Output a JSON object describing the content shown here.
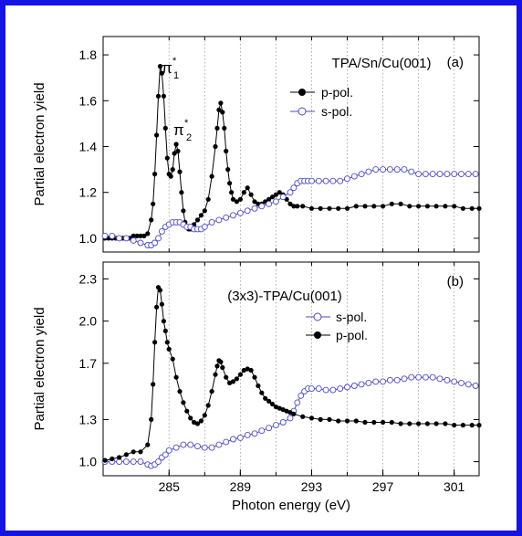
{
  "chart_data": [
    {
      "type": "line",
      "panel_label": "(a)",
      "title": "TPA/Sn/Cu(001)",
      "xlabel": "",
      "ylabel": "Partial electron yield",
      "xlim": [
        281.3,
        302.4
      ],
      "ylim": [
        0.94,
        1.88
      ],
      "yticks": [
        1.0,
        1.2,
        1.4,
        1.6,
        1.8
      ],
      "ytick_labels": [
        "1.0",
        "1.2",
        "1.4",
        "1.6",
        "1.8"
      ],
      "xgrid": [
        285,
        287,
        289,
        291,
        293,
        295,
        297,
        299,
        301
      ],
      "annotations": [
        {
          "text": "π",
          "sub": "1",
          "sup": "*",
          "x": 285.0,
          "y": 1.76
        },
        {
          "text": "π",
          "sub": "2",
          "sup": "*",
          "x": 286.2,
          "y": 1.46
        }
      ],
      "legend_position": "right",
      "series": [
        {
          "name": "p-pol.",
          "color": "#000000",
          "marker": "filled-circle",
          "x": [
            281.4,
            281.6,
            281.8,
            282.0,
            282.2,
            282.4,
            282.6,
            282.8,
            283.0,
            283.2,
            283.4,
            283.6,
            283.8,
            284.0,
            284.1,
            284.2,
            284.3,
            284.4,
            284.5,
            284.6,
            284.7,
            284.8,
            284.9,
            285.0,
            285.1,
            285.2,
            285.3,
            285.4,
            285.5,
            285.6,
            285.7,
            285.8,
            285.9,
            286.0,
            286.1,
            286.2,
            286.3,
            286.4,
            286.6,
            286.8,
            287.0,
            287.2,
            287.4,
            287.6,
            287.7,
            287.8,
            287.9,
            288.0,
            288.1,
            288.2,
            288.3,
            288.4,
            288.5,
            288.6,
            288.8,
            289.0,
            289.2,
            289.4,
            289.6,
            289.8,
            290.0,
            290.2,
            290.4,
            290.6,
            290.8,
            291.0,
            291.2,
            291.4,
            291.6,
            291.8,
            292.0,
            292.2,
            292.5,
            293.0,
            293.5,
            294.0,
            294.5,
            295.0,
            295.5,
            296.0,
            296.5,
            297.0,
            297.5,
            298.0,
            298.5,
            299.0,
            299.5,
            300.0,
            300.5,
            301.0,
            301.5,
            302.0,
            302.4
          ],
          "y": [
            1.0,
            1.0,
            1.0,
            1.0,
            1.0,
            1.0,
            1.0,
            1.0,
            1.01,
            1.01,
            1.01,
            1.01,
            1.02,
            1.08,
            1.15,
            1.28,
            1.45,
            1.62,
            1.75,
            1.72,
            1.62,
            1.48,
            1.35,
            1.28,
            1.27,
            1.3,
            1.37,
            1.41,
            1.38,
            1.29,
            1.2,
            1.12,
            1.07,
            1.05,
            1.04,
            1.04,
            1.05,
            1.06,
            1.08,
            1.1,
            1.12,
            1.17,
            1.27,
            1.4,
            1.48,
            1.56,
            1.59,
            1.55,
            1.48,
            1.38,
            1.3,
            1.24,
            1.2,
            1.17,
            1.16,
            1.17,
            1.2,
            1.22,
            1.19,
            1.16,
            1.15,
            1.15,
            1.16,
            1.17,
            1.18,
            1.19,
            1.2,
            1.19,
            1.17,
            1.15,
            1.14,
            1.14,
            1.14,
            1.13,
            1.13,
            1.13,
            1.13,
            1.13,
            1.14,
            1.14,
            1.14,
            1.14,
            1.15,
            1.15,
            1.14,
            1.14,
            1.14,
            1.14,
            1.14,
            1.14,
            1.13,
            1.13,
            1.13
          ]
        },
        {
          "name": "s-pol.",
          "color": "#4a4ad0",
          "marker": "open-circle",
          "x": [
            281.4,
            281.8,
            282.2,
            282.6,
            283.0,
            283.4,
            283.8,
            284.0,
            284.2,
            284.4,
            284.6,
            284.8,
            285.0,
            285.2,
            285.4,
            285.6,
            285.8,
            286.0,
            286.2,
            286.4,
            286.6,
            286.8,
            287.0,
            287.4,
            287.8,
            288.2,
            288.6,
            289.0,
            289.4,
            289.8,
            290.2,
            290.6,
            291.0,
            291.4,
            291.8,
            292.0,
            292.2,
            292.4,
            292.6,
            292.8,
            293.0,
            293.4,
            293.8,
            294.2,
            294.6,
            295.0,
            295.4,
            295.8,
            296.2,
            296.6,
            297.0,
            297.4,
            297.8,
            298.2,
            298.6,
            299.0,
            299.4,
            299.8,
            300.2,
            300.6,
            301.0,
            301.4,
            301.8,
            302.2
          ],
          "y": [
            1.01,
            1.01,
            1.0,
            1.0,
            0.99,
            0.98,
            0.97,
            0.97,
            0.98,
            1.0,
            1.03,
            1.05,
            1.06,
            1.07,
            1.07,
            1.07,
            1.06,
            1.05,
            1.05,
            1.04,
            1.04,
            1.04,
            1.05,
            1.07,
            1.08,
            1.09,
            1.1,
            1.11,
            1.12,
            1.13,
            1.14,
            1.15,
            1.16,
            1.18,
            1.2,
            1.22,
            1.24,
            1.25,
            1.25,
            1.25,
            1.25,
            1.25,
            1.25,
            1.25,
            1.25,
            1.26,
            1.27,
            1.28,
            1.29,
            1.3,
            1.3,
            1.3,
            1.3,
            1.3,
            1.29,
            1.28,
            1.28,
            1.28,
            1.28,
            1.28,
            1.28,
            1.28,
            1.28,
            1.28
          ]
        }
      ]
    },
    {
      "type": "line",
      "panel_label": "(b)",
      "title": "(3x3)-TPA/Cu(001)",
      "xlabel": "Photon energy (eV)",
      "ylabel": "Partial electron yield",
      "xlim": [
        281.3,
        302.4
      ],
      "ylim": [
        0.9,
        2.42
      ],
      "yticks": [
        1.0,
        1.3,
        1.7,
        2.0,
        2.3
      ],
      "ytick_labels": [
        "1.0",
        "1.3",
        "1.7",
        "2.0",
        "2.3"
      ],
      "xticks": [
        285,
        289,
        293,
        297,
        301
      ],
      "xtick_labels": [
        "285",
        "289",
        "293",
        "297",
        "301"
      ],
      "xgrid": [
        285,
        287,
        289,
        291,
        293,
        295,
        297,
        299,
        301
      ],
      "legend_position": "right",
      "series": [
        {
          "name": "s-pol.",
          "color": "#4a4ad0",
          "marker": "open-circle",
          "x": [
            281.4,
            281.8,
            282.2,
            282.6,
            283.0,
            283.4,
            283.8,
            284.0,
            284.2,
            284.4,
            284.6,
            284.8,
            285.0,
            285.4,
            285.8,
            286.2,
            286.6,
            287.0,
            287.4,
            287.8,
            288.2,
            288.6,
            289.0,
            289.4,
            289.8,
            290.2,
            290.6,
            291.0,
            291.4,
            291.8,
            292.0,
            292.2,
            292.4,
            292.6,
            292.8,
            293.0,
            293.4,
            293.8,
            294.2,
            294.6,
            295.0,
            295.4,
            295.8,
            296.2,
            296.6,
            297.0,
            297.4,
            297.8,
            298.2,
            298.6,
            299.0,
            299.4,
            299.8,
            300.2,
            300.6,
            301.0,
            301.4,
            301.8,
            302.2
          ],
          "y": [
            1.0,
            1.0,
            1.0,
            1.0,
            1.0,
            1.0,
            0.98,
            0.97,
            0.98,
            1.0,
            1.03,
            1.05,
            1.08,
            1.1,
            1.12,
            1.12,
            1.11,
            1.1,
            1.1,
            1.12,
            1.14,
            1.16,
            1.17,
            1.19,
            1.2,
            1.22,
            1.24,
            1.26,
            1.28,
            1.31,
            1.36,
            1.42,
            1.47,
            1.5,
            1.52,
            1.52,
            1.52,
            1.51,
            1.51,
            1.52,
            1.53,
            1.54,
            1.55,
            1.56,
            1.57,
            1.57,
            1.58,
            1.58,
            1.59,
            1.6,
            1.6,
            1.6,
            1.6,
            1.59,
            1.58,
            1.57,
            1.56,
            1.55,
            1.54
          ]
        },
        {
          "name": "p-pol.",
          "color": "#000000",
          "marker": "filled-circle",
          "x": [
            281.4,
            281.8,
            282.2,
            282.6,
            283.0,
            283.4,
            283.8,
            284.0,
            284.1,
            284.2,
            284.3,
            284.4,
            284.5,
            284.6,
            284.7,
            284.8,
            284.9,
            285.0,
            285.2,
            285.4,
            285.6,
            285.8,
            286.0,
            286.2,
            286.4,
            286.6,
            286.8,
            287.0,
            287.2,
            287.4,
            287.6,
            287.7,
            287.8,
            287.9,
            288.0,
            288.2,
            288.4,
            288.6,
            288.8,
            289.0,
            289.2,
            289.4,
            289.6,
            289.8,
            290.0,
            290.2,
            290.4,
            290.6,
            290.8,
            291.0,
            291.2,
            291.4,
            291.6,
            291.8,
            292.0,
            292.5,
            293.0,
            293.5,
            294.0,
            294.5,
            295.0,
            295.5,
            296.0,
            296.5,
            297.0,
            297.5,
            298.0,
            298.5,
            299.0,
            299.5,
            300.0,
            300.5,
            301.0,
            301.5,
            302.0,
            302.4
          ],
          "y": [
            1.01,
            1.02,
            1.03,
            1.05,
            1.07,
            1.07,
            1.12,
            1.3,
            1.55,
            1.85,
            2.1,
            2.24,
            2.22,
            2.12,
            2.0,
            1.93,
            1.85,
            1.8,
            1.73,
            1.6,
            1.5,
            1.42,
            1.36,
            1.31,
            1.28,
            1.27,
            1.29,
            1.33,
            1.4,
            1.5,
            1.62,
            1.68,
            1.72,
            1.71,
            1.67,
            1.6,
            1.56,
            1.57,
            1.59,
            1.62,
            1.65,
            1.66,
            1.65,
            1.6,
            1.54,
            1.49,
            1.45,
            1.43,
            1.41,
            1.39,
            1.38,
            1.37,
            1.36,
            1.35,
            1.34,
            1.32,
            1.31,
            1.3,
            1.3,
            1.29,
            1.29,
            1.29,
            1.28,
            1.28,
            1.28,
            1.28,
            1.27,
            1.27,
            1.27,
            1.27,
            1.27,
            1.27,
            1.26,
            1.26,
            1.26,
            1.26
          ]
        }
      ]
    }
  ]
}
